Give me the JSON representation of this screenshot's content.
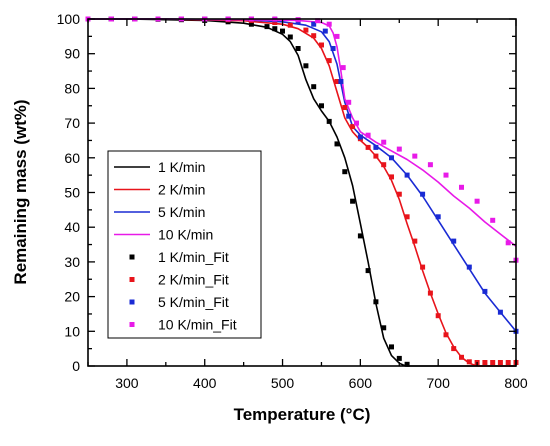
{
  "chart_data": {
    "type": "line",
    "xlabel": "Temperature (°C)",
    "ylabel": "Remaining mass (wt%)",
    "xlim": [
      250,
      800
    ],
    "ylim": [
      0,
      100
    ],
    "xticks": [
      300,
      400,
      500,
      600,
      700,
      800
    ],
    "yticks": [
      0,
      10,
      20,
      30,
      40,
      50,
      60,
      70,
      80,
      90,
      100
    ],
    "grid": false,
    "legend_position": "middle-left",
    "series": [
      {
        "name": "1 K/min",
        "style": "line",
        "color": "#000000",
        "x": [
          250,
          300,
          350,
          400,
          450,
          480,
          500,
          510,
          520,
          530,
          540,
          550,
          560,
          570,
          580,
          590,
          600,
          610,
          620,
          630,
          640,
          650,
          655,
          660,
          670,
          800
        ],
        "y": [
          100,
          100,
          99.8,
          99.6,
          98.8,
          97.6,
          95.6,
          93.5,
          89.5,
          82.5,
          77,
          73.5,
          70.5,
          66,
          60,
          52,
          41,
          30,
          18,
          8,
          3,
          0.8,
          0.3,
          0,
          0,
          0
        ]
      },
      {
        "name": "2 K/min",
        "style": "line",
        "color": "#e8141b",
        "x": [
          250,
          350,
          450,
          500,
          520,
          540,
          550,
          560,
          570,
          580,
          590,
          600,
          610,
          620,
          630,
          640,
          650,
          660,
          670,
          680,
          690,
          700,
          710,
          720,
          730,
          740,
          750,
          800
        ],
        "y": [
          100,
          100,
          99.5,
          98.5,
          97.2,
          94.5,
          91.5,
          86.5,
          79,
          71.5,
          67.5,
          65,
          63,
          60.5,
          57.5,
          53.5,
          48,
          41,
          34.5,
          27.5,
          21,
          15,
          9.5,
          5.5,
          2.5,
          0.8,
          0,
          0
        ]
      },
      {
        "name": "5 K/min",
        "style": "line",
        "color": "#1a2bd4",
        "x": [
          250,
          350,
          450,
          500,
          530,
          550,
          560,
          570,
          580,
          590,
          600,
          620,
          640,
          660,
          680,
          700,
          720,
          740,
          760,
          780,
          800
        ],
        "y": [
          100,
          100,
          99.8,
          99.2,
          98.2,
          96.3,
          93.5,
          87,
          76,
          69,
          66.5,
          63.5,
          60,
          55,
          49,
          42,
          35,
          28,
          21,
          15.5,
          10
        ]
      },
      {
        "name": "10 K/min",
        "style": "line",
        "color": "#e81ae8",
        "x": [
          250,
          350,
          450,
          520,
          550,
          560,
          565,
          570,
          575,
          580,
          590,
          600,
          620,
          640,
          660,
          680,
          700,
          720,
          740,
          760,
          780,
          800
        ],
        "y": [
          100,
          100,
          99.8,
          99.6,
          99,
          98,
          96,
          92,
          85,
          77,
          71.5,
          67.5,
          64.5,
          62,
          59.5,
          56.5,
          53,
          49,
          45.5,
          41.5,
          38,
          34.5
        ]
      },
      {
        "name": "1 K/min_Fit",
        "style": "marker",
        "color": "#000000",
        "x": [
          250,
          280,
          310,
          340,
          370,
          400,
          430,
          460,
          480,
          490,
          500,
          510,
          520,
          530,
          540,
          550,
          560,
          570,
          580,
          590,
          600,
          610,
          620,
          630,
          640,
          650,
          660
        ],
        "y": [
          100,
          100,
          100,
          99.9,
          99.8,
          99.6,
          99.2,
          98.5,
          97.8,
          97.2,
          96.5,
          94.8,
          91.5,
          86.5,
          80.5,
          75,
          70.5,
          64,
          56,
          47.5,
          37.5,
          27.5,
          18.5,
          11,
          5.5,
          2.2,
          0.5
        ]
      },
      {
        "name": "2 K/min_Fit",
        "style": "marker",
        "color": "#e8141b",
        "x": [
          250,
          280,
          310,
          340,
          370,
          400,
          430,
          460,
          490,
          510,
          530,
          540,
          550,
          560,
          570,
          580,
          590,
          600,
          610,
          620,
          630,
          640,
          650,
          660,
          670,
          680,
          690,
          700,
          710,
          720,
          730,
          740,
          750,
          760,
          770,
          780,
          790,
          800
        ],
        "y": [
          100,
          100,
          100,
          100,
          100,
          100,
          99.8,
          99.6,
          99,
          98.2,
          96.8,
          95.2,
          92.5,
          88,
          82,
          74.5,
          69,
          65.5,
          63,
          60.5,
          58,
          54.5,
          49.5,
          43,
          36,
          28.5,
          21,
          14.5,
          9,
          5,
          2.5,
          1.2,
          1,
          1,
          1,
          1,
          1,
          1
        ]
      },
      {
        "name": "5 K/min_Fit",
        "style": "marker",
        "color": "#1a2bd4",
        "x": [
          250,
          280,
          310,
          340,
          370,
          400,
          430,
          460,
          490,
          520,
          540,
          555,
          565,
          575,
          585,
          600,
          620,
          640,
          660,
          680,
          700,
          720,
          740,
          760,
          780,
          800
        ],
        "y": [
          100,
          100,
          100,
          100,
          100,
          100,
          100,
          100,
          99.8,
          99.2,
          98.5,
          96.5,
          91.5,
          82,
          72,
          66,
          63,
          60,
          55,
          49.5,
          43,
          36,
          28.5,
          21.5,
          15.5,
          10
        ]
      },
      {
        "name": "10 K/min_Fit",
        "style": "marker",
        "color": "#e81ae8",
        "x": [
          250,
          280,
          310,
          340,
          370,
          400,
          430,
          460,
          490,
          520,
          545,
          560,
          570,
          578,
          585,
          595,
          610,
          630,
          650,
          670,
          690,
          710,
          730,
          750,
          770,
          790,
          800
        ],
        "y": [
          100,
          100,
          100,
          100,
          100,
          100,
          100,
          100,
          100,
          99.8,
          99.5,
          98.5,
          95,
          86,
          76,
          70,
          66.5,
          64.5,
          62.5,
          60.5,
          58,
          55,
          51.5,
          47.5,
          42,
          35.5,
          30.5
        ]
      }
    ]
  }
}
